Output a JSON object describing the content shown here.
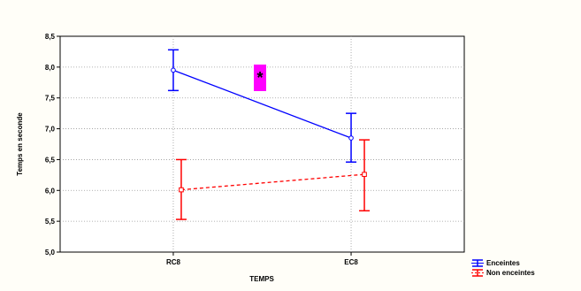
{
  "chart_data": {
    "type": "line",
    "xlabel": "TEMPS",
    "ylabel": "Temps en seconde",
    "categories": [
      "RC8",
      "EC8"
    ],
    "ylim": [
      5.0,
      8.5
    ],
    "yticks": [
      "5,0",
      "5,5",
      "6,0",
      "6,5",
      "7,0",
      "7,5",
      "8,0",
      "8,5"
    ],
    "grid": true,
    "legend_position": "bottom-right",
    "annotation": "*",
    "series": [
      {
        "name": "Enceintes",
        "color": "#0000ff",
        "line_style": "solid",
        "marker": "circle",
        "values": [
          7.95,
          6.85
        ],
        "err_low": [
          7.62,
          6.46
        ],
        "err_high": [
          8.28,
          7.25
        ]
      },
      {
        "name": "Non enceintes",
        "color": "#ff0000",
        "line_style": "dashed",
        "marker": "square",
        "values": [
          6.01,
          6.26
        ],
        "err_low": [
          5.53,
          5.67
        ],
        "err_high": [
          6.5,
          6.82
        ]
      }
    ]
  }
}
